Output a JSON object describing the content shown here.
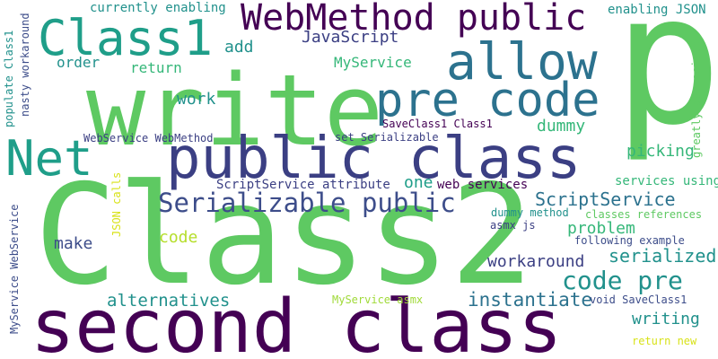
{
  "palette": {
    "dark_purple": "#440154",
    "indigo": "#3b3f83",
    "slate_blue": "#3d4d8a",
    "teal_blue": "#2c728e",
    "teal": "#21918c",
    "green_teal": "#1f9e89",
    "green": "#35b779",
    "light_green": "#5ec962",
    "lime": "#a0da39",
    "yellow_green": "#b5de2b",
    "yellow": "#d8e219"
  },
  "words": [
    {
      "text": "Class2",
      "color": "#5ec962"
    },
    {
      "text": "second class",
      "color": "#440154"
    },
    {
      "text": "write",
      "color": "#5ec962"
    },
    {
      "text": "p",
      "color": "#5ec962"
    },
    {
      "text": "public class",
      "color": "#3b3f83"
    },
    {
      "text": "pre code",
      "color": "#2c728e"
    },
    {
      "text": "allow",
      "color": "#2c728e"
    },
    {
      "text": "Class1",
      "color": "#1f9e89"
    },
    {
      "text": "Net",
      "color": "#1f9e89"
    },
    {
      "text": "WebMethod public",
      "color": "#440154"
    },
    {
      "text": "Serializable public",
      "color": "#3d4d8a"
    },
    {
      "text": "code pre",
      "color": "#21918c"
    },
    {
      "text": "instantiate",
      "color": "#2c728e"
    },
    {
      "text": "alternatives",
      "color": "#21918c"
    },
    {
      "text": "ScriptService",
      "color": "#2c728e"
    },
    {
      "text": "serialized",
      "color": "#21918c"
    },
    {
      "text": "writing",
      "color": "#21918c"
    },
    {
      "text": "workaround",
      "color": "#3b3f83"
    },
    {
      "text": "problem",
      "color": "#35b779"
    },
    {
      "text": "picking",
      "color": "#35b779"
    },
    {
      "text": "make",
      "color": "#3d4d8a"
    },
    {
      "text": "code",
      "color": "#b5de2b"
    },
    {
      "text": "work",
      "color": "#21918c"
    },
    {
      "text": "one",
      "color": "#1f9e89"
    },
    {
      "text": "dummy",
      "color": "#35b779"
    },
    {
      "text": "JavaScript",
      "color": "#3b3f83"
    },
    {
      "text": "add",
      "color": "#21918c"
    },
    {
      "text": "order",
      "color": "#21918c"
    },
    {
      "text": "return",
      "color": "#35b779"
    },
    {
      "text": "MyService",
      "color": "#35b779"
    },
    {
      "text": "currently enabling",
      "color": "#21918c"
    },
    {
      "text": "enabling JSON",
      "color": "#21918c"
    },
    {
      "text": "web services",
      "color": "#440154"
    },
    {
      "text": "ScriptService attribute",
      "color": "#3b3f83"
    },
    {
      "text": "services using",
      "color": "#35b779"
    },
    {
      "text": "dummy method",
      "color": "#21918c"
    },
    {
      "text": "classes references",
      "color": "#5ec962"
    },
    {
      "text": "asmx js",
      "color": "#3b3f83"
    },
    {
      "text": "following example",
      "color": "#3d4d8a"
    },
    {
      "text": "MyService asmx",
      "color": "#a0da39"
    },
    {
      "text": "void SaveClass1",
      "color": "#3d4d8a"
    },
    {
      "text": "return new",
      "color": "#d8e219"
    },
    {
      "text": "WebService WebMethod",
      "color": "#3b3f83"
    },
    {
      "text": "SaveClass1 Class1",
      "color": "#440154"
    },
    {
      "text": "set Serializable",
      "color": "#3b3f83"
    },
    {
      "text": "JSON calls",
      "color": "#d8e219"
    },
    {
      "text": "MyService WebService",
      "color": "#3d4d8a"
    },
    {
      "text": "nasty workaround",
      "color": "#3d4d8a"
    },
    {
      "text": "populate Class1",
      "color": "#21918c"
    },
    {
      "text": "greatly appreciated",
      "color": "#5ec962"
    }
  ]
}
